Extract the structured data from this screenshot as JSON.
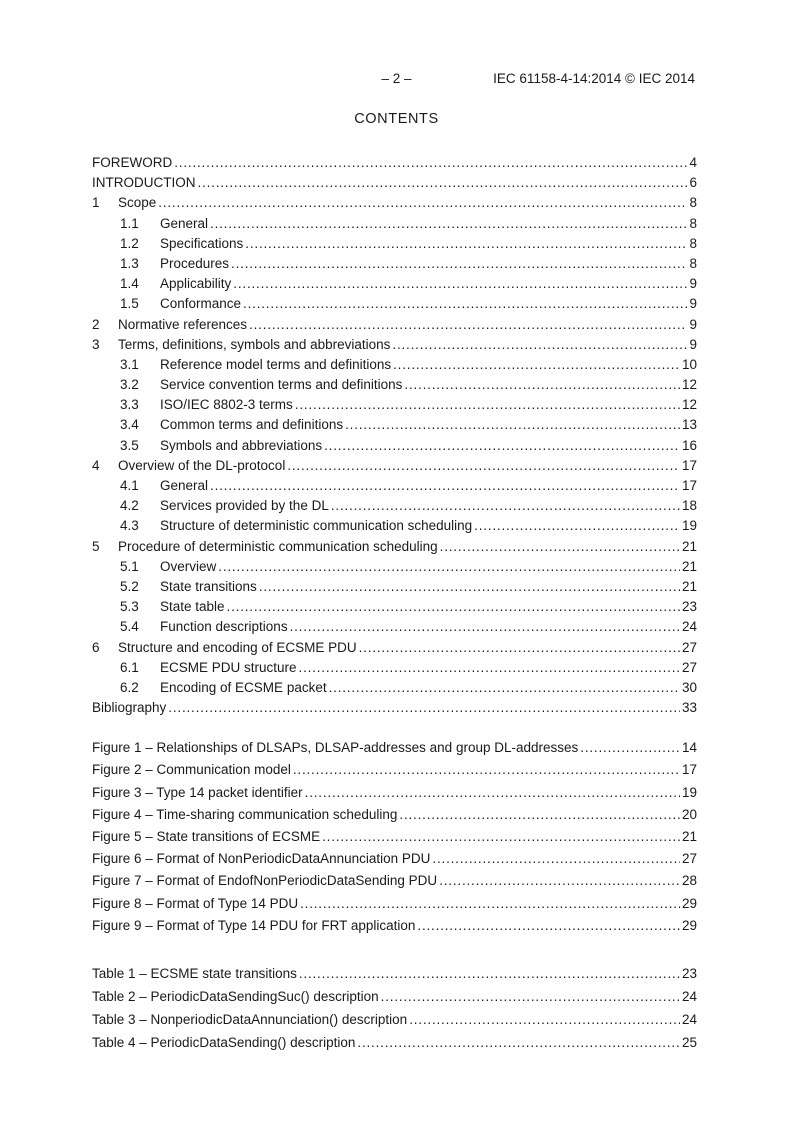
{
  "colors": {
    "background": "#ffffff",
    "text": "#1a1a1a"
  },
  "header": {
    "page_number": "– 2 –",
    "doc_reference": "IEC 61158-4-14:2014 © IEC 2014"
  },
  "contents_title": "CONTENTS",
  "toc": {
    "entries": [
      {
        "num": "",
        "level": 0,
        "title": "FOREWORD",
        "page": "4"
      },
      {
        "num": "",
        "level": 0,
        "title": "INTRODUCTION",
        "page": "6"
      },
      {
        "num": "1",
        "level": 1,
        "title": "Scope",
        "page": "8"
      },
      {
        "num": "1.1",
        "level": 2,
        "title": "General",
        "page": "8"
      },
      {
        "num": "1.2",
        "level": 2,
        "title": "Specifications",
        "page": "8"
      },
      {
        "num": "1.3",
        "level": 2,
        "title": "Procedures",
        "page": "8"
      },
      {
        "num": "1.4",
        "level": 2,
        "title": "Applicability",
        "page": "9"
      },
      {
        "num": "1.5",
        "level": 2,
        "title": "Conformance",
        "page": "9"
      },
      {
        "num": "2",
        "level": 1,
        "title": "Normative references",
        "page": "9"
      },
      {
        "num": "3",
        "level": 1,
        "title": "Terms, definitions, symbols and abbreviations",
        "page": "9"
      },
      {
        "num": "3.1",
        "level": 2,
        "title": "Reference model terms and definitions",
        "page": "10"
      },
      {
        "num": "3.2",
        "level": 2,
        "title": "Service convention terms and definitions",
        "page": "12"
      },
      {
        "num": "3.3",
        "level": 2,
        "title": "ISO/IEC 8802-3 terms",
        "page": "12"
      },
      {
        "num": "3.4",
        "level": 2,
        "title": "Common terms and definitions",
        "page": "13"
      },
      {
        "num": "3.5",
        "level": 2,
        "title": "Symbols and abbreviations",
        "page": "16"
      },
      {
        "num": "4",
        "level": 1,
        "title": "Overview of the DL-protocol",
        "page": "17"
      },
      {
        "num": "4.1",
        "level": 2,
        "title": "General",
        "page": "17"
      },
      {
        "num": "4.2",
        "level": 2,
        "title": "Services provided by the DL",
        "page": "18"
      },
      {
        "num": "4.3",
        "level": 2,
        "title": "Structure of deterministic communication scheduling",
        "page": "19"
      },
      {
        "num": "5",
        "level": 1,
        "title": "Procedure of deterministic communication scheduling",
        "page": "21"
      },
      {
        "num": "5.1",
        "level": 2,
        "title": "Overview",
        "page": "21"
      },
      {
        "num": "5.2",
        "level": 2,
        "title": "State transitions",
        "page": "21"
      },
      {
        "num": "5.3",
        "level": 2,
        "title": "State table",
        "page": "23"
      },
      {
        "num": "5.4",
        "level": 2,
        "title": "Function descriptions",
        "page": "24"
      },
      {
        "num": "6",
        "level": 1,
        "title": "Structure and encoding of ECSME PDU",
        "page": "27"
      },
      {
        "num": "6.1",
        "level": 2,
        "title": "ECSME PDU structure",
        "page": "27"
      },
      {
        "num": "6.2",
        "level": 2,
        "title": "Encoding of ECSME packet",
        "page": "30"
      },
      {
        "num": "",
        "level": 0,
        "title": "Bibliography",
        "page": "33"
      }
    ],
    "figures": [
      {
        "title": "Figure 1 – Relationships of DLSAPs, DLSAP-addresses and group DL-addresses",
        "page": "14"
      },
      {
        "title": "Figure 2 – Communication model",
        "page": "17"
      },
      {
        "title": "Figure 3 – Type 14 packet identifier",
        "page": "19"
      },
      {
        "title": "Figure 4 – Time-sharing communication scheduling",
        "page": "20"
      },
      {
        "title": "Figure 5 – State transitions of ECSME",
        "page": "21"
      },
      {
        "title": "Figure 6 – Format of NonPeriodicDataAnnunciation PDU",
        "page": "27"
      },
      {
        "title": "Figure 7 – Format of EndofNonPeriodicDataSending PDU",
        "page": "28"
      },
      {
        "title": "Figure 8 – Format of Type 14 PDU",
        "page": "29"
      },
      {
        "title": "Figure 9 – Format of Type 14 PDU for FRT application",
        "page": "29"
      }
    ],
    "tables": [
      {
        "title": "Table 1 – ECSME state transitions",
        "page": "23"
      },
      {
        "title": "Table 2 – PeriodicDataSendingSuc() description",
        "page": "24"
      },
      {
        "title": "Table 3 – NonperiodicDataAnnunciation() description",
        "page": "24"
      },
      {
        "title": "Table 4 – PeriodicDataSending() description",
        "page": "25"
      }
    ]
  }
}
